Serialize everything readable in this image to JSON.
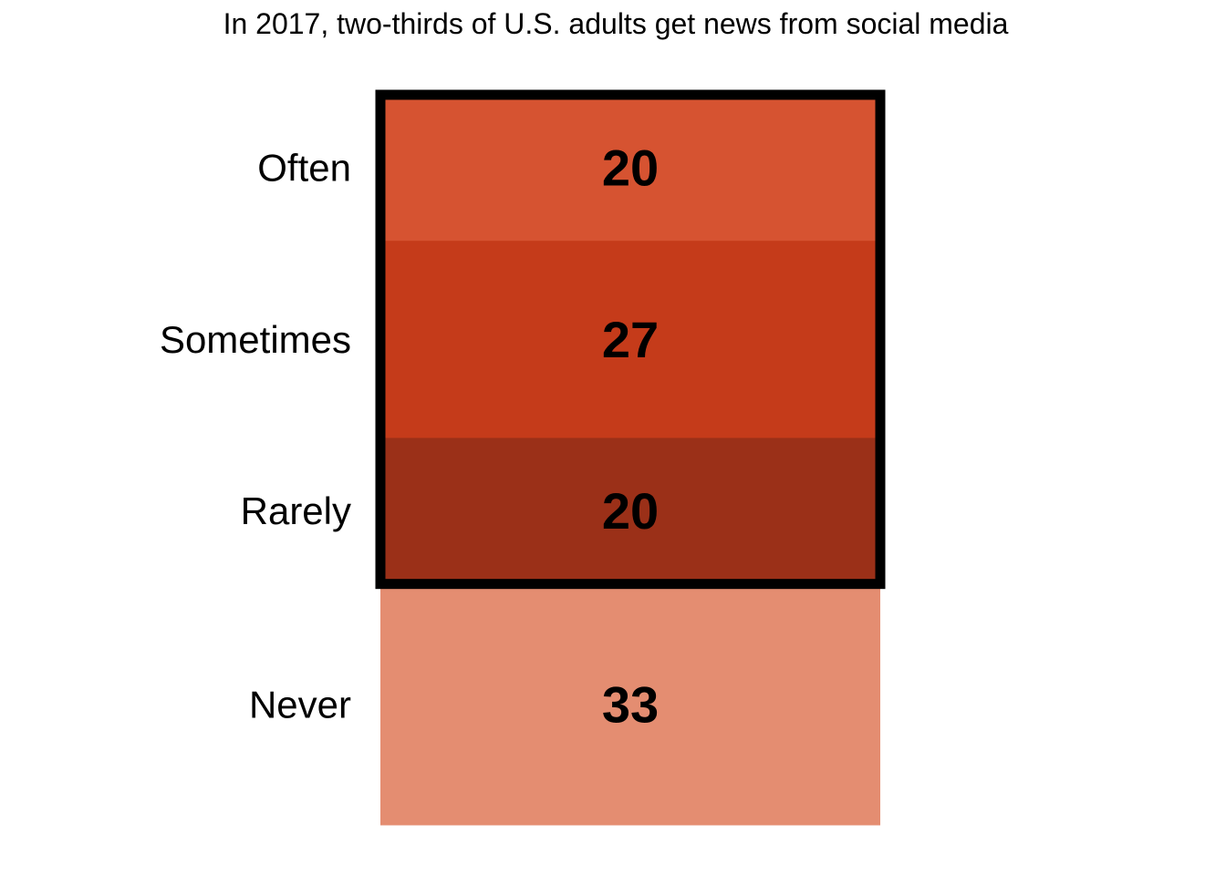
{
  "chart_data": {
    "type": "bar",
    "title": "In 2017, two-thirds of U.S. adults get news from social media",
    "categories": [
      "Often",
      "Sometimes",
      "Rarely",
      "Never"
    ],
    "values": [
      20,
      27,
      20,
      33
    ],
    "colors": [
      "#d65331",
      "#c53b1a",
      "#9b3018",
      "#e48d71"
    ],
    "highlight": {
      "categories": [
        "Often",
        "Sometimes",
        "Rarely"
      ],
      "border_color": "#000000"
    },
    "xlabel": "",
    "ylabel": "",
    "grid": false,
    "legend": "none"
  }
}
